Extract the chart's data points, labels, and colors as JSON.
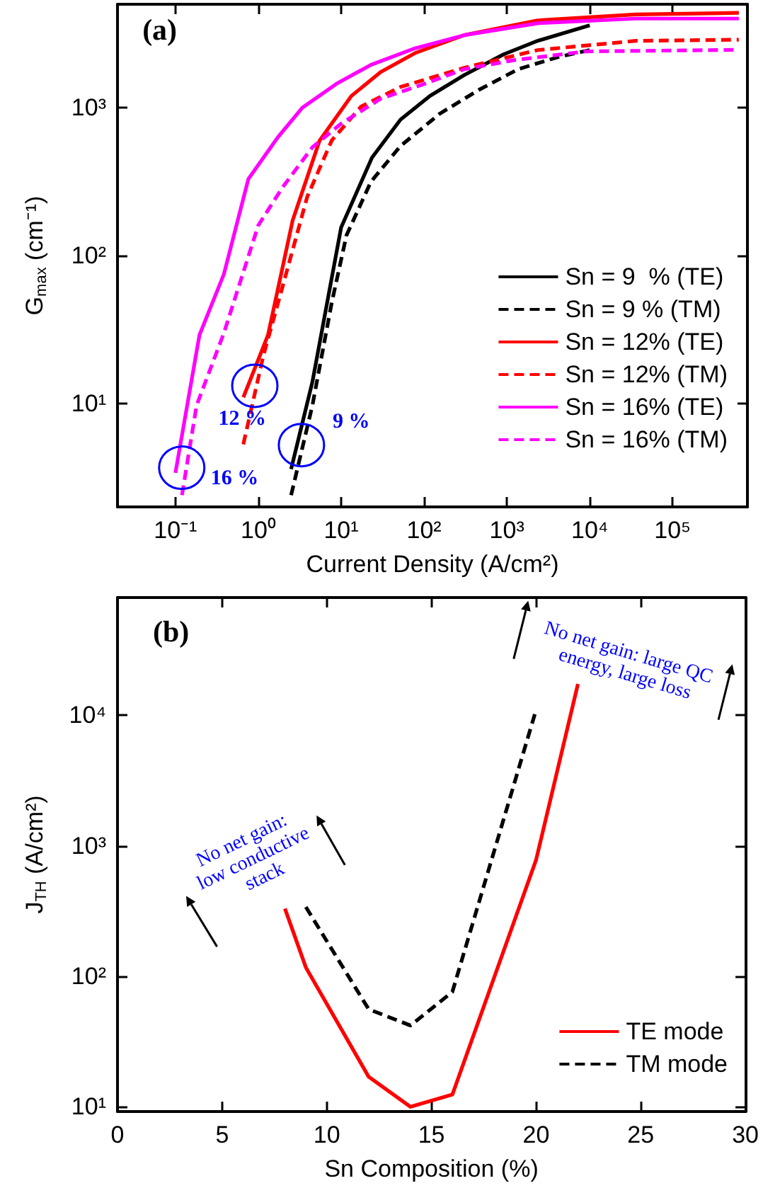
{
  "chart_data": [
    {
      "type": "line",
      "xlabel": "Current Density (A/cm²)",
      "ylabel": "G$_{max}$ (cm⁻¹)",
      "log": "xy",
      "xlim": [
        0.02,
        800000
      ],
      "ylim": [
        2,
        5000
      ],
      "xticks": [
        {
          "value": 0.1,
          "label": "10⁻¹"
        },
        {
          "value": 1,
          "label": "10⁰"
        },
        {
          "value": 10,
          "label": "10¹"
        },
        {
          "value": 100,
          "label": "10²"
        },
        {
          "value": 1000,
          "label": "10³"
        },
        {
          "value": 10000,
          "label": "10⁴"
        },
        {
          "value": 100000,
          "label": "10⁵"
        }
      ],
      "yticks": [
        {
          "value": 10,
          "label": "10¹"
        },
        {
          "value": 100,
          "label": "10²"
        },
        {
          "value": 1000,
          "label": "10³"
        }
      ],
      "grid": false,
      "legend": "bottom right",
      "marker": "none",
      "annotations": [
        "(a)",
        "12 %",
        "9 %",
        "16 %"
      ],
      "series": [
        {
          "name": "Sn = 9  % (TE)",
          "color": "#000000",
          "line_style": "solid",
          "x": [
            2.49,
            4.5,
            10,
            23.6,
            52,
            118,
            306,
            910,
            2350,
            10000
          ],
          "values": [
            3.6,
            14,
            155,
            460,
            830,
            1200,
            1660,
            2290,
            2830,
            3600
          ]
        },
        {
          "name": "Sn = 9 % (TM)",
          "color": "#000000",
          "line_style": "dashed",
          "x": [
            2.49,
            4.5,
            7.7,
            11.6,
            22.9,
            52,
            155,
            460,
            1370,
            4050,
            10000
          ],
          "values": [
            2.4,
            9.7,
            48,
            137,
            316,
            550,
            910,
            1320,
            1820,
            2190,
            2450
          ]
        },
        {
          "name": "Sn = 12% (TE)",
          "color": "#ff0000",
          "line_style": "solid",
          "x": [
            0.66,
            1.31,
            2.6,
            5.5,
            13.3,
            30,
            78,
            306,
            2350,
            36000,
            630000
          ],
          "values": [
            11,
            29,
            173,
            600,
            1200,
            1740,
            2340,
            3090,
            3890,
            4270,
            4370
          ]
        },
        {
          "name": "Sn = 12% (TM)",
          "color": "#ff0000",
          "line_style": "dashed",
          "x": [
            0.66,
            1.15,
            2.0,
            3.9,
            7.7,
            17.5,
            52,
            306,
            2350,
            36000,
            630000
          ],
          "values": [
            5.3,
            21,
            64,
            250,
            600,
            1020,
            1380,
            1860,
            2450,
            2830,
            2880
          ]
        },
        {
          "name": "Sn = 16% (TE)",
          "color": "#ff00ff",
          "line_style": "solid",
          "x": [
            0.1,
            0.195,
            0.385,
            0.76,
            1.72,
            3.4,
            8.8,
            23,
            78,
            306,
            2350,
            36000,
            630000
          ],
          "values": [
            3.4,
            29,
            75,
            330,
            630,
            1000,
            1450,
            1950,
            2520,
            3090,
            3720,
            4000,
            4000
          ]
        },
        {
          "name": "Sn = 16% (TM)",
          "color": "#ff00ff",
          "line_style": "dashed",
          "x": [
            0.12,
            0.18,
            0.385,
            1.0,
            1.97,
            4.5,
            10,
            30,
            102,
            306,
            1190,
            9000,
            630000
          ],
          "values": [
            2.4,
            9.7,
            30,
            160,
            290,
            540,
            780,
            1150,
            1450,
            1820,
            2090,
            2400,
            2460
          ]
        }
      ]
    },
    {
      "type": "line",
      "xlabel": "Sn Composition (%)",
      "ylabel": "J$_{TH}$ (A/cm²)",
      "log": "y",
      "xlim": [
        0,
        30
      ],
      "ylim": [
        9.2,
        80000
      ],
      "xticks": [
        0,
        5,
        10,
        15,
        20,
        25,
        30
      ],
      "yticks": [
        {
          "value": 10,
          "label": "10¹"
        },
        {
          "value": 100,
          "label": "10²"
        },
        {
          "value": 1000,
          "label": "10³"
        },
        {
          "value": 10000,
          "label": "10⁴"
        }
      ],
      "grid": false,
      "legend": "bottom right",
      "marker": "none",
      "annotations": [
        "(b)",
        "No net gain: low conductive stack",
        "No net gain: large QC energy, large loss"
      ],
      "series": [
        {
          "name": "TE mode",
          "color": "#ff0000",
          "line_style": "solid",
          "x": [
            8,
            9,
            12,
            14,
            16,
            20,
            22
          ],
          "values": [
            330,
            117,
            17,
            10,
            12.4,
            780,
            17400
          ]
        },
        {
          "name": "TM mode",
          "color": "#000000",
          "line_style": "dashed",
          "x": [
            9,
            12,
            14,
            16,
            20
          ],
          "values": [
            340,
            56,
            42,
            76,
            11000
          ]
        }
      ]
    }
  ]
}
